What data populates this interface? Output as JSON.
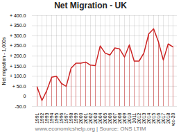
{
  "chart_data": {
    "type": "line",
    "title": "Net Migration - UK",
    "ylabel": "Net migration - 1,000s",
    "footnote": "www.economicshelp.org | Source: ONS LTIM",
    "color": "#cc2222",
    "categories": [
      "1991",
      "1992",
      "1993",
      "1994",
      "1995",
      "1996",
      "1997",
      "1998",
      "1999",
      "2000",
      "2001",
      "2002",
      "2003",
      "2004",
      "2005",
      "2006",
      "2007",
      "2008",
      "2009",
      "2010",
      "2011",
      "2012",
      "2013",
      "2014",
      "2015",
      "2016",
      "2017",
      "2018",
      "Dec-20"
    ],
    "values": [
      47,
      -20,
      30,
      95,
      100,
      65,
      50,
      140,
      165,
      165,
      170,
      155,
      153,
      250,
      215,
      205,
      240,
      235,
      195,
      255,
      175,
      175,
      215,
      310,
      335,
      270,
      180,
      260,
      245
    ],
    "ylim": [
      -50,
      400
    ],
    "yticks": [
      {
        "value": -50,
        "label": "-50.0"
      },
      0,
      {
        "value": 50,
        "label": "+ 50.0"
      },
      {
        "value": 100,
        "label": "+ 100.0"
      },
      {
        "value": 150,
        "label": "+ 150.0"
      },
      {
        "value": 200,
        "label": "+ 200.0"
      },
      {
        "value": 250,
        "label": "+ 250.0"
      },
      {
        "value": 300,
        "label": "+ 300.0"
      },
      {
        "value": 350,
        "label": "+ 350.0"
      },
      {
        "value": 400,
        "label": "+ 400.0"
      }
    ],
    "grid": true
  }
}
